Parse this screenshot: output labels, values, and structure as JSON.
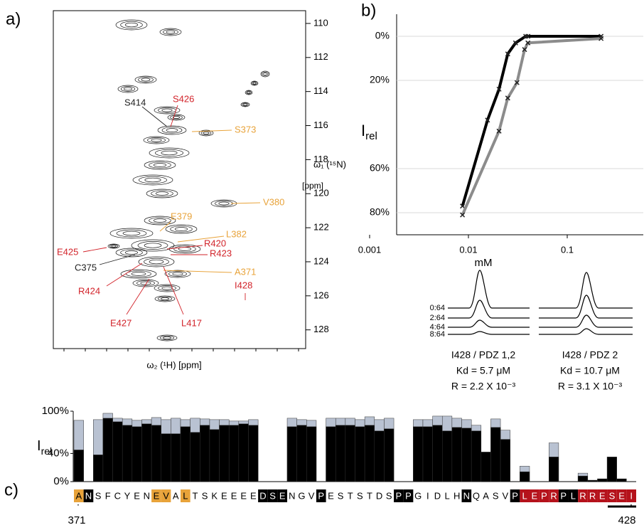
{
  "panel_labels": [
    "a)",
    "b)",
    "c)"
  ],
  "spectrum": {
    "y_label": "ω₁ (¹⁵N)",
    "y_unit": "[ppm]",
    "x_label": "ω₂ (¹H) [ppm]",
    "ylim": [
      109.25,
      129.1
    ],
    "yticks": [
      110,
      112,
      114,
      116,
      118,
      120,
      122,
      124,
      126,
      128
    ],
    "peaks": [
      {
        "label": "S414",
        "color": "#222222"
      },
      {
        "label": "S426",
        "color": "#d2232a"
      },
      {
        "label": "S373",
        "color": "#e8a33a"
      },
      {
        "label": "V380",
        "color": "#e8a33a"
      },
      {
        "label": "E379",
        "color": "#e8a33a"
      },
      {
        "label": "L382",
        "color": "#e8a33a"
      },
      {
        "label": "R420",
        "color": "#d2232a"
      },
      {
        "label": "R423",
        "color": "#d2232a"
      },
      {
        "label": "E425",
        "color": "#d2232a"
      },
      {
        "label": "C375",
        "color": "#222222"
      },
      {
        "label": "A371",
        "color": "#e8a33a"
      },
      {
        "label": "I428",
        "color": "#d2232a"
      },
      {
        "label": "R424",
        "color": "#d2232a"
      },
      {
        "label": "E427",
        "color": "#d2232a"
      },
      {
        "label": "L417",
        "color": "#d2232a"
      }
    ]
  },
  "chart_data": [
    {
      "type": "line",
      "x_label": "mM",
      "y_label": {
        "main": "I",
        "sub": "rel"
      },
      "log_x": true,
      "y_inverted": true,
      "grid": true,
      "xlim": [
        0.001,
        0.6
      ],
      "ylim": [
        -10,
        90
      ],
      "xticks": [
        0.001,
        0.01,
        0.1
      ],
      "yticks": [
        {
          "value": 0,
          "label": "0%"
        },
        {
          "value": 20,
          "label": "20%"
        },
        {
          "value": 60,
          "label": "60%"
        },
        {
          "value": 80,
          "label": "80%"
        }
      ],
      "series": [
        {
          "color": "#000000",
          "x": [
            0.0087,
            0.0156,
            0.0204,
            0.025,
            0.03,
            0.038,
            0.04,
            0.22
          ],
          "values": [
            77,
            38,
            24,
            8,
            3,
            0,
            0,
            0
          ]
        },
        {
          "color": "#8c8c8c",
          "x": [
            0.0087,
            0.0204,
            0.025,
            0.031,
            0.037,
            0.04,
            0.22
          ],
          "values": [
            81,
            43,
            28,
            21,
            6,
            3,
            1
          ]
        }
      ],
      "spectra_labels": [
        "0:64",
        "2:64",
        "4:64",
        "8:64"
      ],
      "captions": [
        [
          "I428 / PDZ 1,2",
          "Kd = 5.7 μM",
          "R = 2.2 X 10⁻³"
        ],
        [
          "I428 / PDZ 2",
          "Kd = 10.7 μM",
          "R = 3.1 X 10⁻³"
        ]
      ]
    },
    {
      "type": "bar",
      "y_label": {
        "main": "I",
        "sub": "rel"
      },
      "ylim": [
        0,
        100
      ],
      "yticks": [
        {
          "value": 0,
          "label": "0%"
        },
        {
          "value": 40,
          "label": "40%"
        },
        {
          "value": 100,
          "label": "100%"
        }
      ],
      "series": [
        {
          "color": "#b9c2d2",
          "values": [
            87,
            null,
            88,
            97,
            90,
            89,
            87,
            88,
            91,
            88,
            90,
            88,
            90,
            89,
            88,
            88,
            86,
            86,
            88,
            null,
            null,
            null,
            90,
            88,
            87,
            null,
            90,
            90,
            90,
            88,
            92,
            88,
            90,
            null,
            null,
            88,
            88,
            93,
            93,
            90,
            88,
            80,
            null,
            89,
            73,
            null,
            22,
            null,
            null,
            55,
            null,
            null,
            12,
            null,
            null,
            null,
            null,
            null
          ]
        },
        {
          "color": "#000000",
          "values": [
            45,
            null,
            38,
            90,
            85,
            80,
            78,
            82,
            80,
            68,
            68,
            78,
            70,
            80,
            74,
            80,
            80,
            82,
            80,
            null,
            null,
            null,
            78,
            80,
            78,
            null,
            78,
            80,
            80,
            78,
            80,
            72,
            75,
            null,
            null,
            78,
            78,
            80,
            72,
            77,
            76,
            72,
            42,
            77,
            60,
            null,
            14,
            null,
            null,
            35,
            null,
            null,
            8,
            2,
            4,
            35,
            4,
            null
          ]
        }
      ],
      "residues": [
        {
          "letter": "A",
          "box": "#e8a33a"
        },
        {
          "letter": "N",
          "box": "#000000"
        },
        {
          "letter": "S"
        },
        {
          "letter": "F"
        },
        {
          "letter": "C"
        },
        {
          "letter": "Y"
        },
        {
          "letter": "E"
        },
        {
          "letter": "N"
        },
        {
          "letter": "E",
          "box": "#e8a33a"
        },
        {
          "letter": "V",
          "box": "#e8a33a"
        },
        {
          "letter": "A"
        },
        {
          "letter": "L",
          "box": "#e8a33a"
        },
        {
          "letter": "T"
        },
        {
          "letter": "S"
        },
        {
          "letter": "K"
        },
        {
          "letter": "E"
        },
        {
          "letter": "E"
        },
        {
          "letter": "E"
        },
        {
          "letter": "E"
        },
        {
          "letter": "D",
          "box": "#000000"
        },
        {
          "letter": "S",
          "box": "#000000"
        },
        {
          "letter": "E",
          "box": "#000000"
        },
        {
          "letter": "N"
        },
        {
          "letter": "G"
        },
        {
          "letter": "V"
        },
        {
          "letter": "P",
          "box": "#000000"
        },
        {
          "letter": "E"
        },
        {
          "letter": "S"
        },
        {
          "letter": "T"
        },
        {
          "letter": "S"
        },
        {
          "letter": "T"
        },
        {
          "letter": "D"
        },
        {
          "letter": "S"
        },
        {
          "letter": "P",
          "box": "#000000"
        },
        {
          "letter": "P",
          "box": "#000000"
        },
        {
          "letter": "G"
        },
        {
          "letter": "I"
        },
        {
          "letter": "D"
        },
        {
          "letter": "L"
        },
        {
          "letter": "H"
        },
        {
          "letter": "N",
          "box": "#000000"
        },
        {
          "letter": "Q"
        },
        {
          "letter": "A"
        },
        {
          "letter": "S"
        },
        {
          "letter": "V"
        },
        {
          "letter": "P",
          "box": "#000000"
        },
        {
          "letter": "L",
          "box": "#b5121b"
        },
        {
          "letter": "E",
          "box": "#b5121b"
        },
        {
          "letter": "P",
          "box": "#b5121b"
        },
        {
          "letter": "R",
          "box": "#b5121b"
        },
        {
          "letter": "P",
          "box": "#000000"
        },
        {
          "letter": "L",
          "box": "#000000"
        },
        {
          "letter": "R",
          "box": "#b5121b"
        },
        {
          "letter": "R",
          "box": "#b5121b"
        },
        {
          "letter": "E",
          "box": "#b5121b"
        },
        {
          "letter": "S",
          "box": "#b5121b"
        },
        {
          "letter": "E",
          "box": "#b5121b"
        },
        {
          "letter": "I",
          "box": "#b5121b"
        }
      ],
      "first_residue": 371,
      "last_residue": 428
    }
  ]
}
